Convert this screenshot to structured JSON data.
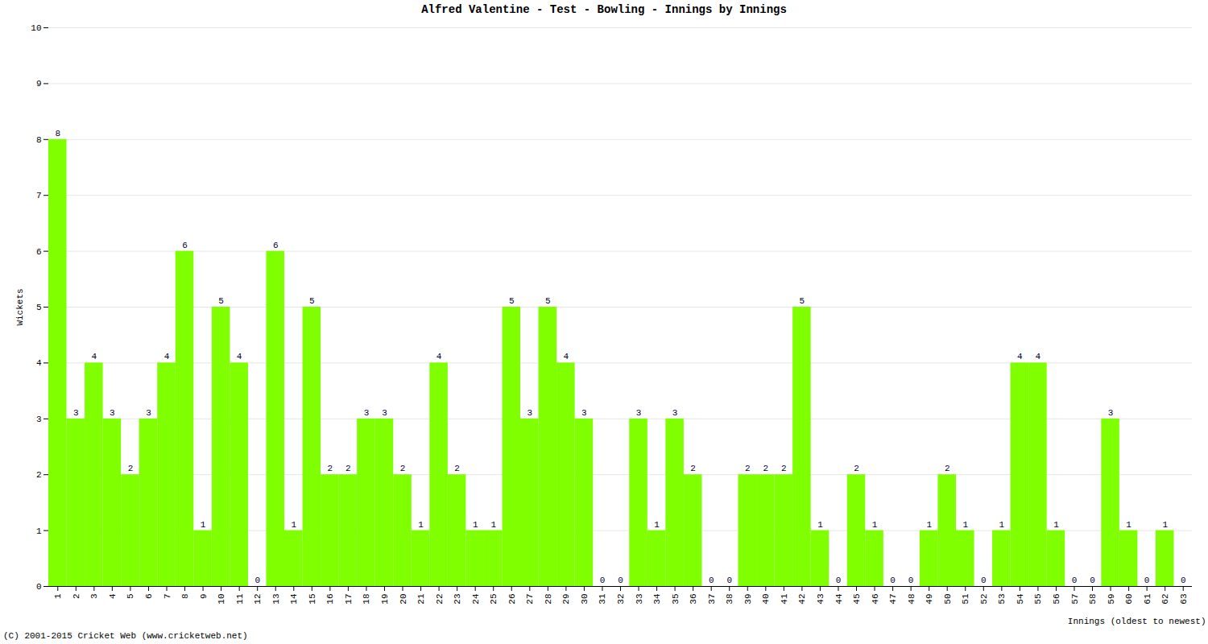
{
  "chart_data": {
    "type": "bar",
    "title": "Alfred Valentine - Test - Bowling - Innings by Innings",
    "x_label": "Innings (oldest to newest)",
    "y_label": "Wickets",
    "footer": "(C) 2001-2015 Cricket Web (www.cricketweb.net)",
    "categories": [
      1,
      2,
      3,
      4,
      5,
      6,
      7,
      8,
      9,
      10,
      11,
      12,
      13,
      14,
      15,
      16,
      17,
      18,
      19,
      20,
      21,
      22,
      23,
      24,
      25,
      26,
      27,
      28,
      29,
      30,
      31,
      32,
      33,
      34,
      35,
      36,
      37,
      38,
      39,
      40,
      41,
      42,
      43,
      44,
      45,
      46,
      47,
      48,
      49,
      50,
      51,
      52,
      53,
      54,
      55,
      56,
      57,
      58,
      59,
      60,
      61,
      62,
      63
    ],
    "values": [
      8,
      3,
      4,
      3,
      2,
      3,
      4,
      6,
      1,
      5,
      4,
      0,
      6,
      1,
      5,
      2,
      2,
      3,
      3,
      2,
      1,
      4,
      2,
      1,
      1,
      5,
      3,
      5,
      4,
      3,
      0,
      0,
      3,
      1,
      3,
      2,
      0,
      0,
      2,
      2,
      2,
      5,
      1,
      0,
      2,
      1,
      0,
      0,
      1,
      2,
      1,
      0,
      1,
      4,
      4,
      1,
      0,
      0,
      3,
      1,
      0,
      1,
      0
    ],
    "color": "#7fff00",
    "ylim": [
      0,
      10
    ],
    "yticks": [
      0,
      1,
      2,
      3,
      4,
      5,
      6,
      7,
      8,
      9,
      10
    ],
    "grid": true,
    "data_labels": true
  }
}
